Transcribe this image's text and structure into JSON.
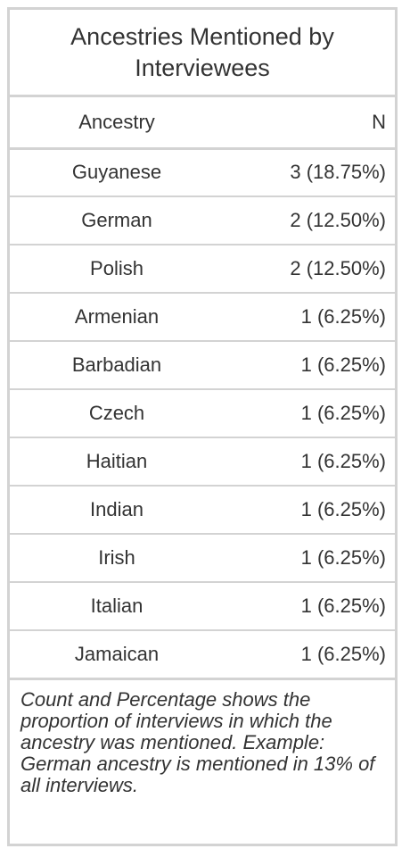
{
  "chart_data": {
    "type": "table",
    "title": "Ancestries Mentioned by Interviewees",
    "columns": [
      "Ancestry",
      "N"
    ],
    "rows": [
      {
        "ancestry": "Guyanese",
        "n": "3 (18.75%)"
      },
      {
        "ancestry": "German",
        "n": "2 (12.50%)"
      },
      {
        "ancestry": "Polish",
        "n": "2 (12.50%)"
      },
      {
        "ancestry": "Armenian",
        "n": "1 (6.25%)"
      },
      {
        "ancestry": "Barbadian",
        "n": "1 (6.25%)"
      },
      {
        "ancestry": "Czech",
        "n": "1 (6.25%)"
      },
      {
        "ancestry": "Haitian",
        "n": "1 (6.25%)"
      },
      {
        "ancestry": "Indian",
        "n": "1 (6.25%)"
      },
      {
        "ancestry": "Irish",
        "n": "1 (6.25%)"
      },
      {
        "ancestry": "Italian",
        "n": "1 (6.25%)"
      },
      {
        "ancestry": "Jamaican",
        "n": "1 (6.25%)"
      }
    ],
    "footnote": "Count and Percentage shows the proportion of interviews in which the ancestry was mentioned. Example: German ancestry is mentioned in 13% of all interviews."
  }
}
